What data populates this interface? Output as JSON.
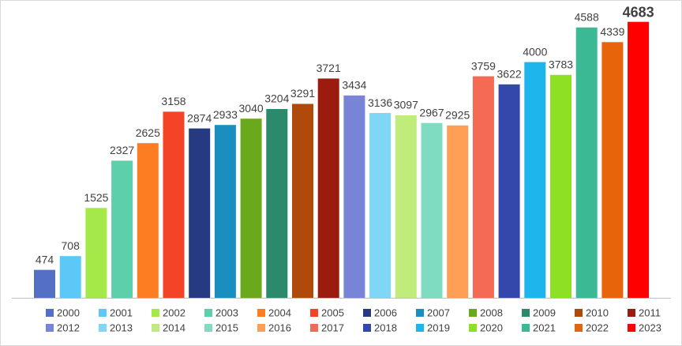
{
  "chart_data": {
    "type": "bar",
    "categories": [
      "2000",
      "2001",
      "2002",
      "2003",
      "2004",
      "2005",
      "2006",
      "2007",
      "2008",
      "2009",
      "2010",
      "2011",
      "2012",
      "2013",
      "2014",
      "2015",
      "2016",
      "2017",
      "2018",
      "2019",
      "2020",
      "2021",
      "2022",
      "2023"
    ],
    "values": [
      474,
      708,
      1525,
      2327,
      2625,
      3158,
      2874,
      2933,
      3040,
      3204,
      3291,
      3721,
      3434,
      3136,
      3097,
      2967,
      2925,
      3759,
      3622,
      4000,
      3783,
      4588,
      4339,
      4683
    ],
    "colors": [
      "#5470c6",
      "#5bc8f5",
      "#a4e84a",
      "#5dcfaa",
      "#fd7e22",
      "#f44326",
      "#253a80",
      "#1a8fbf",
      "#6aa91c",
      "#2b8a6b",
      "#b04a0a",
      "#9b1c0e",
      "#7885d6",
      "#7fd6f5",
      "#bfec7a",
      "#80dcc0",
      "#ff9e55",
      "#f46a55",
      "#3348aa",
      "#1eb4ec",
      "#8ee024",
      "#3ab994",
      "#e8640a",
      "#ff0000"
    ],
    "ylim": [
      0,
      5000
    ]
  }
}
